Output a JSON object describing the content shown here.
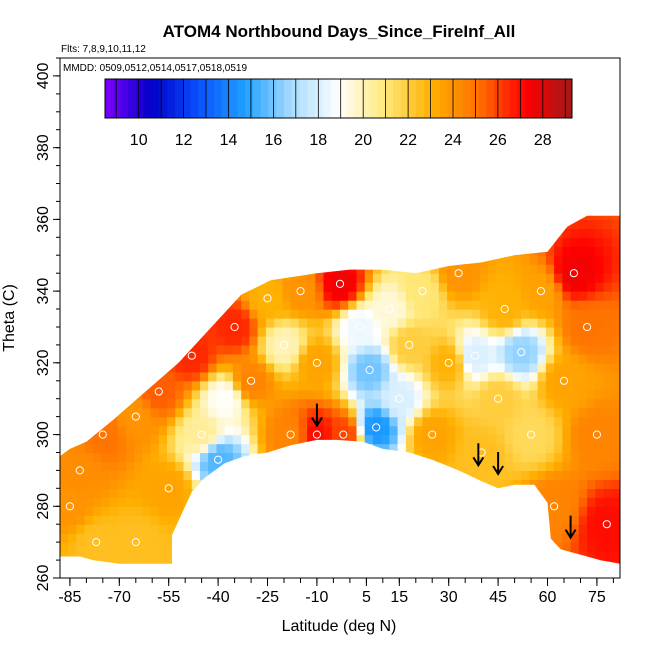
{
  "chart_data": {
    "type": "heatmap",
    "title": "ATOM4 Northbound Days_Since_FireInf_All",
    "subtitle_flights": "Flts: 7,8,9,10,11,12",
    "subtitle_dates": "MMDD: 0509,0512,0514,0517,0518,0519",
    "xlabel": "Latitude (deg N)",
    "ylabel": "Theta (C)",
    "xlim": [
      -88,
      82
    ],
    "ylim": [
      260,
      405
    ],
    "x_ticks": [
      -85,
      -70,
      -55,
      -40,
      -25,
      -10,
      5,
      15,
      30,
      45,
      60,
      75
    ],
    "y_ticks": [
      260,
      280,
      300,
      320,
      340,
      360,
      380,
      400
    ],
    "colorbar": {
      "min": 8.5,
      "max": 29.3,
      "ticks": [
        10,
        12,
        14,
        16,
        18,
        20,
        22,
        24,
        26,
        28
      ],
      "colors": [
        "#7f00ff",
        "#0000c8",
        "#0a50ff",
        "#1fa0ff",
        "#a8dcff",
        "#ffffff",
        "#ffe878",
        "#ffb000",
        "#ff7000",
        "#ff0000",
        "#a01818"
      ]
    },
    "arrows_lat": [
      -10,
      39,
      45,
      67
    ],
    "field_samples": [
      {
        "lat": -85,
        "theta": 280,
        "days": 24.0
      },
      {
        "lat": -82,
        "theta": 290,
        "days": 24.2
      },
      {
        "lat": -77,
        "theta": 270,
        "days": 22.5
      },
      {
        "lat": -75,
        "theta": 300,
        "days": 25.0
      },
      {
        "lat": -65,
        "theta": 305,
        "days": 24.0
      },
      {
        "lat": -65,
        "theta": 270,
        "days": 22.5
      },
      {
        "lat": -58,
        "theta": 312,
        "days": 25.5
      },
      {
        "lat": -55,
        "theta": 285,
        "days": 23.5
      },
      {
        "lat": -48,
        "theta": 322,
        "days": 26.5
      },
      {
        "lat": -45,
        "theta": 300,
        "days": 20.5
      },
      {
        "lat": -40,
        "theta": 293,
        "days": 15.5
      },
      {
        "lat": -38,
        "theta": 310,
        "days": 19.0
      },
      {
        "lat": -35,
        "theta": 330,
        "days": 26.5
      },
      {
        "lat": -30,
        "theta": 315,
        "days": 24.5
      },
      {
        "lat": -25,
        "theta": 338,
        "days": 23.0
      },
      {
        "lat": -20,
        "theta": 325,
        "days": 20.0
      },
      {
        "lat": -18,
        "theta": 300,
        "days": 24.5
      },
      {
        "lat": -15,
        "theta": 340,
        "days": 24.0
      },
      {
        "lat": -10,
        "theta": 320,
        "days": 23.5
      },
      {
        "lat": -10,
        "theta": 300,
        "days": 27.0
      },
      {
        "lat": -3,
        "theta": 342,
        "days": 27.5
      },
      {
        "lat": -2,
        "theta": 300,
        "days": 26.0
      },
      {
        "lat": 3,
        "theta": 330,
        "days": 18.5
      },
      {
        "lat": 6,
        "theta": 318,
        "days": 16.0
      },
      {
        "lat": 8,
        "theta": 302,
        "days": 14.5
      },
      {
        "lat": 12,
        "theta": 335,
        "days": 19.5
      },
      {
        "lat": 15,
        "theta": 310,
        "days": 18.0
      },
      {
        "lat": 18,
        "theta": 325,
        "days": 22.0
      },
      {
        "lat": 22,
        "theta": 340,
        "days": 21.0
      },
      {
        "lat": 25,
        "theta": 300,
        "days": 23.5
      },
      {
        "lat": 30,
        "theta": 320,
        "days": 23.0
      },
      {
        "lat": 33,
        "theta": 345,
        "days": 24.0
      },
      {
        "lat": 38,
        "theta": 322,
        "days": 18.0
      },
      {
        "lat": 40,
        "theta": 295,
        "days": 22.5
      },
      {
        "lat": 45,
        "theta": 310,
        "days": 22.0
      },
      {
        "lat": 47,
        "theta": 335,
        "days": 23.0
      },
      {
        "lat": 52,
        "theta": 323,
        "days": 16.5
      },
      {
        "lat": 55,
        "theta": 300,
        "days": 21.5
      },
      {
        "lat": 58,
        "theta": 340,
        "days": 23.5
      },
      {
        "lat": 62,
        "theta": 280,
        "days": 24.5
      },
      {
        "lat": 65,
        "theta": 315,
        "days": 23.5
      },
      {
        "lat": 68,
        "theta": 345,
        "days": 27.5
      },
      {
        "lat": 72,
        "theta": 330,
        "days": 25.0
      },
      {
        "lat": 75,
        "theta": 300,
        "days": 24.5
      },
      {
        "lat": 78,
        "theta": 275,
        "days": 27.0
      }
    ]
  }
}
